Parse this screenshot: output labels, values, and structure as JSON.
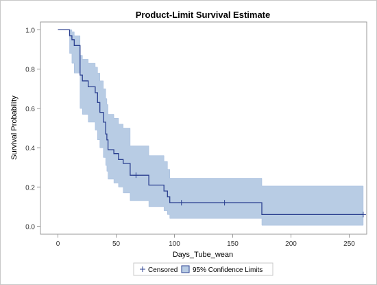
{
  "chart_data": {
    "type": "line",
    "title": "Product-Limit Survival Estimate",
    "xlabel": "Days_Tube_wean",
    "ylabel": "Survival Probability",
    "xlim": [
      -15,
      265
    ],
    "ylim": [
      -0.04,
      1.04
    ],
    "x_ticks": [
      "0",
      "50",
      "100",
      "150",
      "200",
      "250"
    ],
    "x_tick_values": [
      0,
      50,
      100,
      150,
      200,
      250
    ],
    "y_ticks": [
      "0.0",
      "0.2",
      "0.4",
      "0.6",
      "0.8",
      "1.0"
    ],
    "y_tick_values": [
      0,
      0.2,
      0.4,
      0.6,
      0.8,
      1.0
    ],
    "grid": false,
    "legend_position": "bottom",
    "legend": {
      "censored": "Censored",
      "confidence": "95% Confidence Limits"
    },
    "colors": {
      "line": "#2a3f8f",
      "band": "#b8cce4",
      "band_edge": "#9fb8dc",
      "frame": "#999999"
    },
    "survival_steps": [
      [
        0,
        1.0
      ],
      [
        8,
        1.0
      ],
      [
        10,
        0.97
      ],
      [
        12,
        0.95
      ],
      [
        14,
        0.92
      ],
      [
        19,
        0.77
      ],
      [
        21,
        0.74
      ],
      [
        26,
        0.71
      ],
      [
        32,
        0.68
      ],
      [
        34,
        0.63
      ],
      [
        36,
        0.58
      ],
      [
        39,
        0.53
      ],
      [
        41,
        0.47
      ],
      [
        42,
        0.44
      ],
      [
        43,
        0.39
      ],
      [
        48,
        0.37
      ],
      [
        52,
        0.34
      ],
      [
        56,
        0.32
      ],
      [
        62,
        0.26
      ],
      [
        78,
        0.21
      ],
      [
        91,
        0.18
      ],
      [
        94,
        0.15
      ],
      [
        96,
        0.12
      ],
      [
        175,
        0.06
      ],
      [
        262,
        0.06
      ]
    ],
    "ci_lower": [
      [
        0,
        1.0
      ],
      [
        8,
        1.0
      ],
      [
        10,
        0.88
      ],
      [
        12,
        0.83
      ],
      [
        14,
        0.78
      ],
      [
        19,
        0.6
      ],
      [
        21,
        0.57
      ],
      [
        26,
        0.53
      ],
      [
        32,
        0.49
      ],
      [
        34,
        0.44
      ],
      [
        36,
        0.4
      ],
      [
        39,
        0.35
      ],
      [
        41,
        0.31
      ],
      [
        42,
        0.28
      ],
      [
        43,
        0.24
      ],
      [
        48,
        0.22
      ],
      [
        52,
        0.2
      ],
      [
        56,
        0.17
      ],
      [
        62,
        0.13
      ],
      [
        78,
        0.1
      ],
      [
        91,
        0.08
      ],
      [
        94,
        0.06
      ],
      [
        96,
        0.04
      ],
      [
        175,
        0.005
      ],
      [
        262,
        0.005
      ]
    ],
    "ci_upper": [
      [
        0,
        1.0
      ],
      [
        8,
        1.0
      ],
      [
        10,
        1.0
      ],
      [
        12,
        0.99
      ],
      [
        14,
        0.97
      ],
      [
        19,
        0.87
      ],
      [
        21,
        0.85
      ],
      [
        26,
        0.83
      ],
      [
        32,
        0.81
      ],
      [
        34,
        0.78
      ],
      [
        36,
        0.74
      ],
      [
        39,
        0.7
      ],
      [
        41,
        0.65
      ],
      [
        42,
        0.62
      ],
      [
        43,
        0.57
      ],
      [
        48,
        0.55
      ],
      [
        52,
        0.52
      ],
      [
        56,
        0.5
      ],
      [
        62,
        0.41
      ],
      [
        78,
        0.36
      ],
      [
        91,
        0.33
      ],
      [
        94,
        0.29
      ],
      [
        96,
        0.245
      ],
      [
        175,
        0.205
      ],
      [
        262,
        0.205
      ]
    ],
    "censored_points": [
      {
        "x": 67,
        "y": 0.26
      },
      {
        "x": 106,
        "y": 0.12
      },
      {
        "x": 143,
        "y": 0.12
      },
      {
        "x": 262,
        "y": 0.06
      }
    ]
  }
}
